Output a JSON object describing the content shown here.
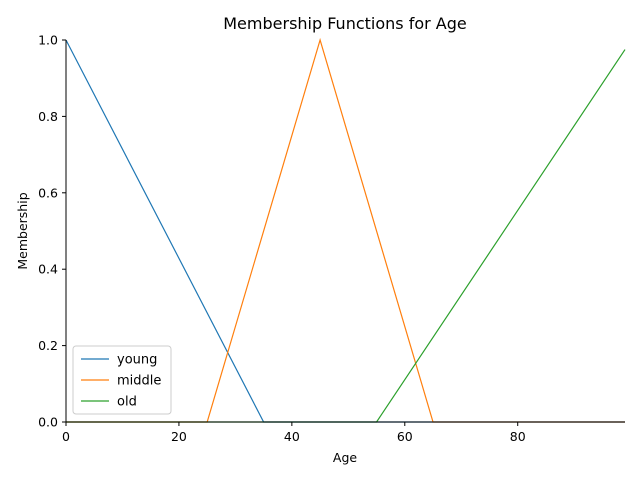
{
  "chart_data": {
    "type": "line",
    "title": "Membership Functions for Age",
    "xlabel": "Age",
    "ylabel": "Membership",
    "xlim": [
      0,
      99
    ],
    "ylim": [
      0,
      1.0
    ],
    "xticks": [
      0,
      20,
      40,
      60,
      80
    ],
    "yticks": [
      0.0,
      0.2,
      0.4,
      0.6,
      0.8,
      1.0
    ],
    "xtick_labels": [
      "0",
      "20",
      "40",
      "60",
      "80"
    ],
    "ytick_labels": [
      "0.0",
      "0.2",
      "0.4",
      "0.6",
      "0.8",
      "1.0"
    ],
    "grid": false,
    "legend_position": "lower-left",
    "series": [
      {
        "name": "young",
        "color": "#1f77b4",
        "x": [
          0,
          35,
          99
        ],
        "y": [
          1.0,
          0.0,
          0.0
        ]
      },
      {
        "name": "middle",
        "color": "#ff7f0e",
        "x": [
          0,
          25,
          45,
          65,
          99
        ],
        "y": [
          0.0,
          0.0,
          1.0,
          0.0,
          0.0
        ]
      },
      {
        "name": "old",
        "color": "#2ca02c",
        "x": [
          0,
          55,
          99
        ],
        "y": [
          0.0,
          0.0,
          0.975
        ]
      }
    ]
  }
}
